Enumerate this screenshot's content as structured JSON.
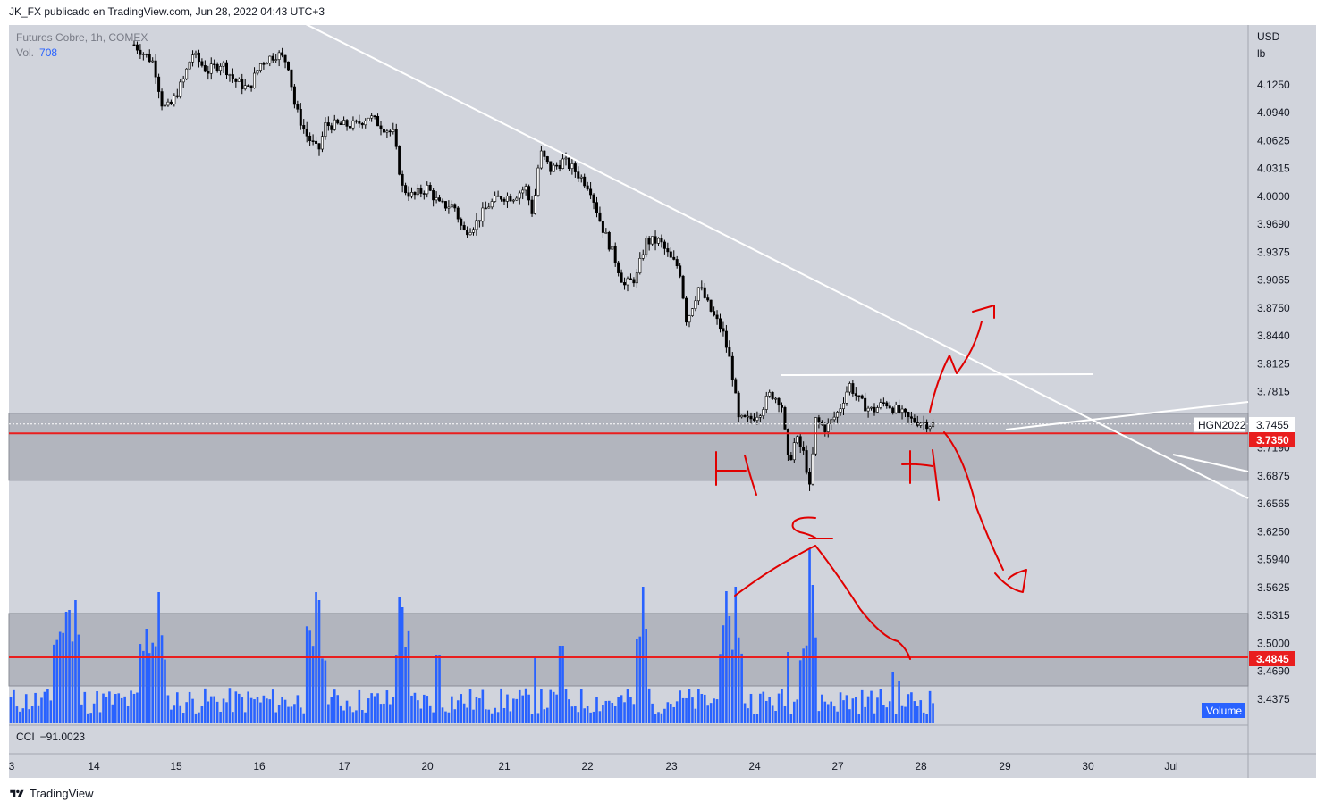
{
  "header": {
    "publisher": "JK_FX publicado en TradingView.com, Jun 28, 2022 04:43 UTC+3"
  },
  "legend": {
    "symbol": "Futuros Cobre, 1h, COMEX",
    "volume_label": "Vol.",
    "volume_value": "708"
  },
  "indicator": {
    "name": "CCI",
    "value": "−91.0023"
  },
  "footer": {
    "brand": "TradingView"
  },
  "colors": {
    "background": "#d1d4dc",
    "zone": "#b2b5be",
    "candle": "#000000",
    "volume_bar": "#2962ff",
    "support_line": "#e91e1e",
    "annotation": "#e00000",
    "trendline": "#ffffff",
    "price_tag_bg": "#e91e1e",
    "volume_tag_bg": "#2962ff"
  },
  "chart_data": {
    "type": "candlestick",
    "symbol": "HGN2022",
    "currency": "USD",
    "unit": "lb",
    "ylim": [
      3.41,
      4.17
    ],
    "y_ticks": [
      "4.1250",
      "4.0940",
      "4.0625",
      "4.0315",
      "4.0000",
      "3.9690",
      "3.9375",
      "3.9065",
      "3.8750",
      "3.8440",
      "3.8125",
      "3.7815",
      "3.7190",
      "3.6875",
      "3.6565",
      "3.6250",
      "3.5940",
      "3.5625",
      "3.5315",
      "3.5000",
      "3.4690",
      "3.4375"
    ],
    "x_ticks": [
      "3",
      "14",
      "15",
      "16",
      "17",
      "20",
      "21",
      "22",
      "23",
      "24",
      "27",
      "28",
      "29",
      "30",
      "Jul"
    ],
    "last_price": "3.7455",
    "last_price_label": "HGN2022",
    "support_level": "3.7350",
    "volume_level": "3.4845",
    "volume_tag": "Volume",
    "zones": [
      {
        "name": "upper-zone",
        "top": 3.7575,
        "bottom": 3.6825
      },
      {
        "name": "volume-zone",
        "top": 3.5335,
        "bottom": 3.4525
      }
    ],
    "trendlines": [
      {
        "name": "descending-trendline",
        "from": [
          "16 late",
          4.17
        ],
        "to": [
          "Jul+",
          3.658
        ]
      },
      {
        "name": "resistance-line",
        "from": [
          "24",
          3.8
        ],
        "to": [
          "29 late",
          3.8
        ]
      }
    ],
    "grid": false,
    "legend_position": "top-left",
    "annotations": [
      "H",
      "S",
      "H",
      "bullish-arrow",
      "bearish-arrow",
      "volume-peak-arrows"
    ]
  }
}
